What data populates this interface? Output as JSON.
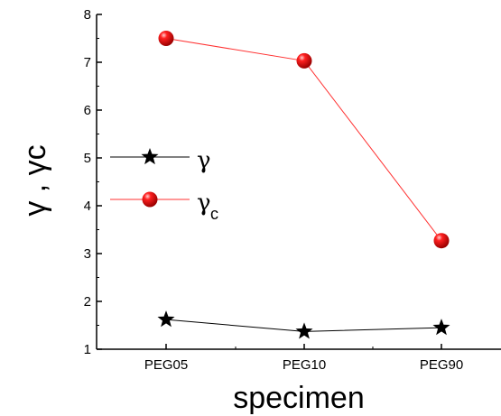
{
  "chart_data": {
    "type": "line",
    "categories": [
      "PEG05",
      "PEG10",
      "PEG90"
    ],
    "series": [
      {
        "name": "γ",
        "subscript": "",
        "marker": "star",
        "color": "#000000",
        "line_color": "#000000",
        "values": [
          1.62,
          1.37,
          1.45
        ]
      },
      {
        "name": "γ",
        "subscript": "c",
        "marker": "sphere",
        "color": "#e00000",
        "line_color": "#ff3030",
        "values": [
          7.5,
          7.03,
          3.27
        ]
      }
    ],
    "y_ticks": [
      "1",
      "2",
      "3",
      "4",
      "5",
      "6",
      "7",
      "8"
    ],
    "xlabel": "specimen",
    "ylabel": "γ , γc",
    "ylim": [
      1,
      8
    ],
    "grid": false,
    "legend_position": "center-left"
  }
}
